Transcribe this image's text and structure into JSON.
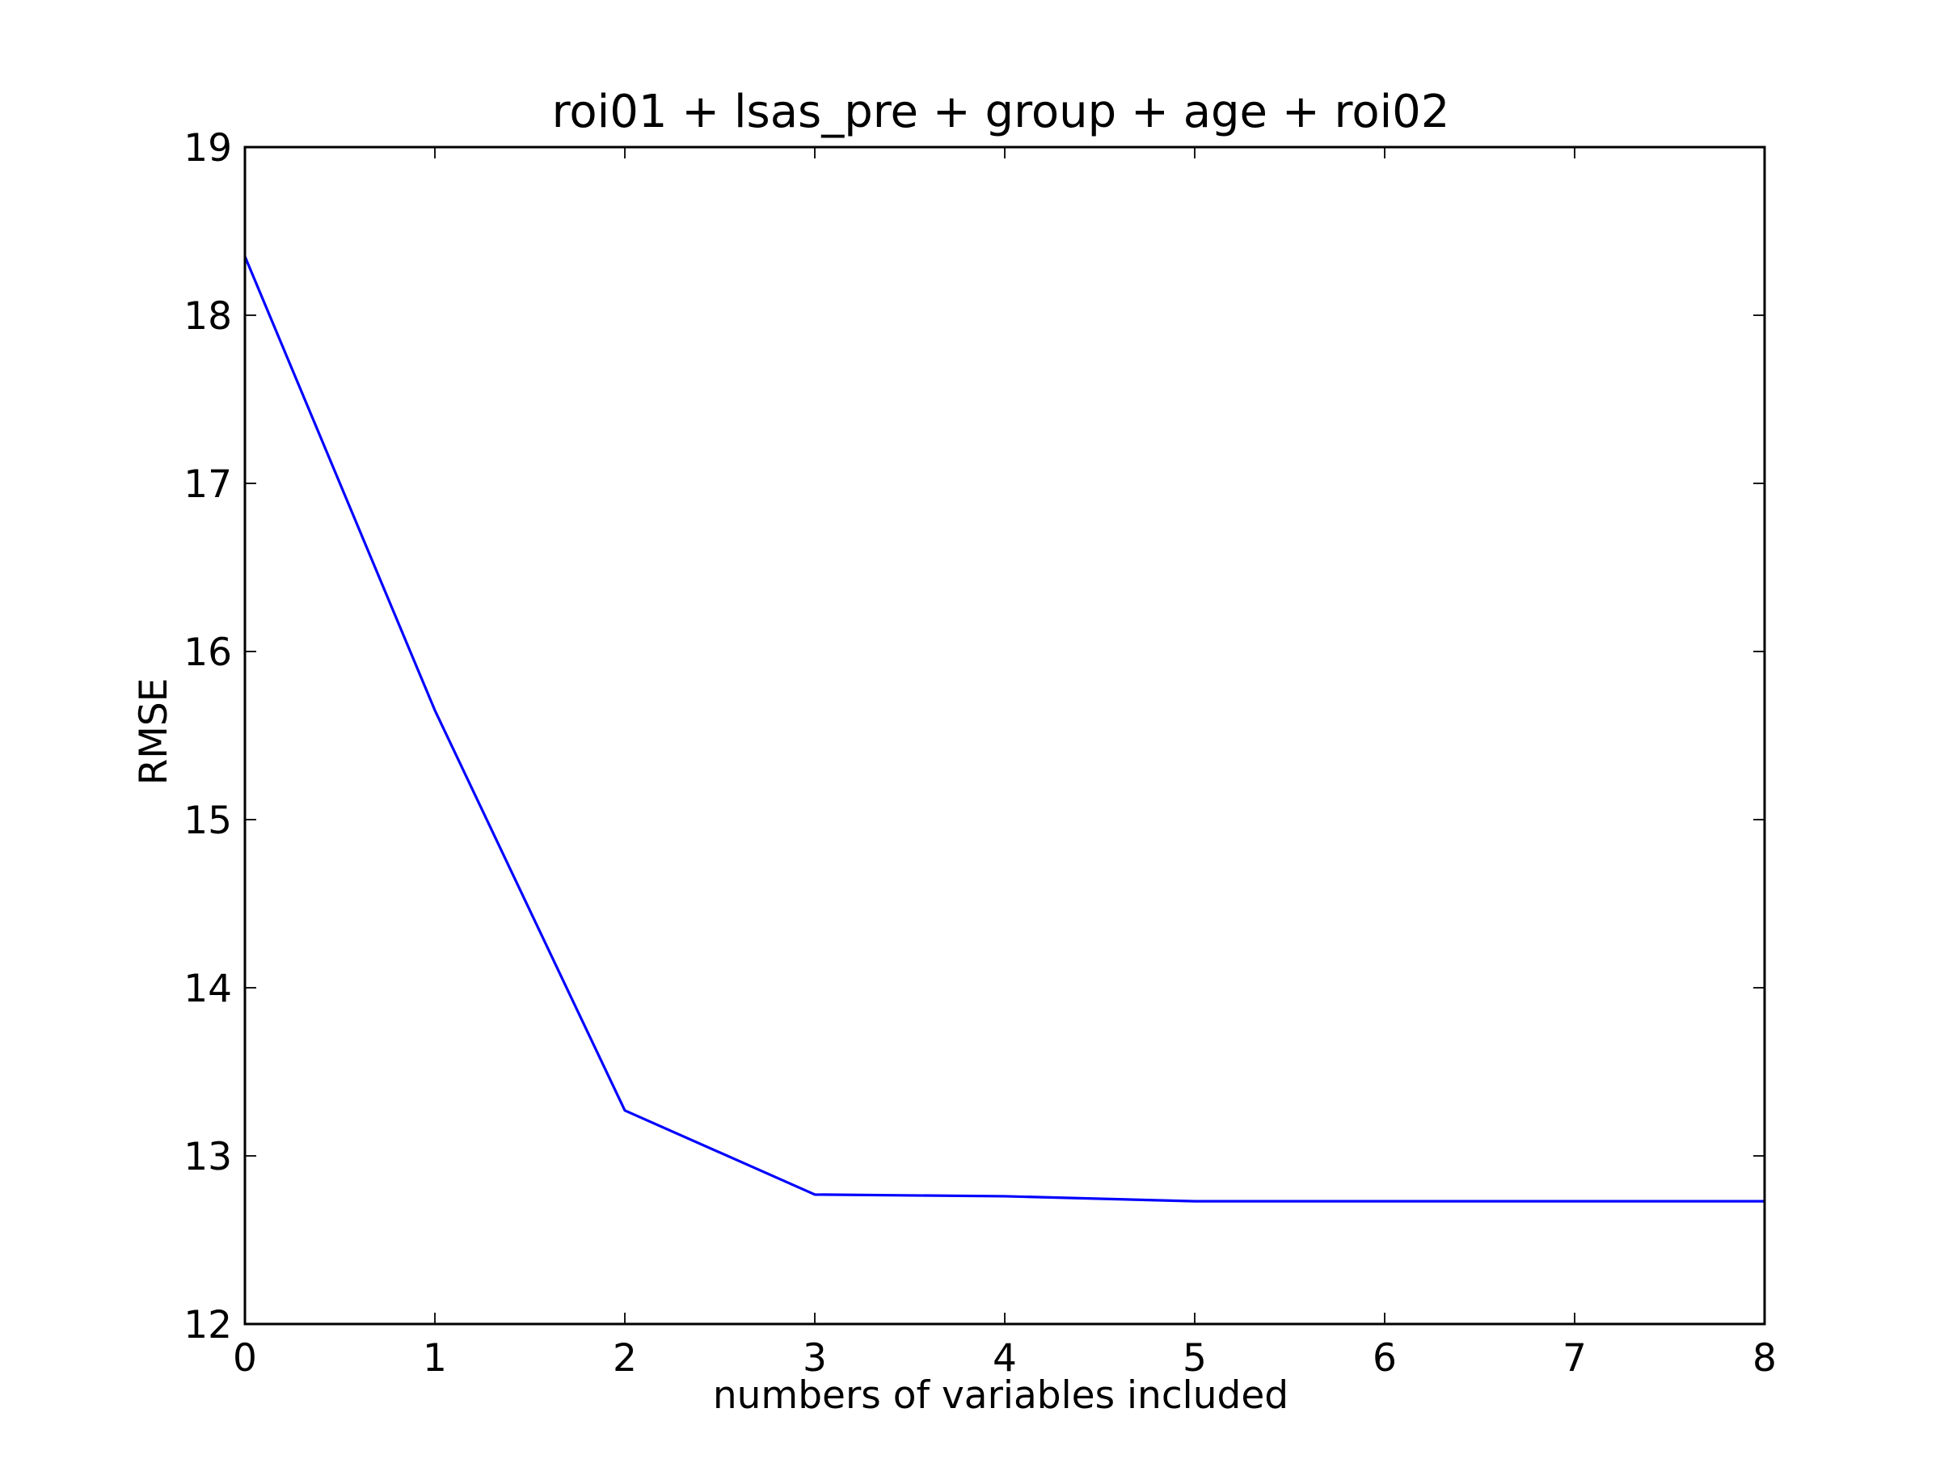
{
  "chart_data": {
    "type": "line",
    "title": "roi01 + lsas_pre + group + age + roi02",
    "xlabel": "numbers of variables included",
    "ylabel": "RMSE",
    "xlim": [
      0,
      8
    ],
    "ylim": [
      12,
      19
    ],
    "xticks": [
      "0",
      "1",
      "2",
      "3",
      "4",
      "5",
      "6",
      "7",
      "8"
    ],
    "yticks": [
      "12",
      "13",
      "14",
      "15",
      "16",
      "17",
      "18",
      "19"
    ],
    "grid": false,
    "series": [
      {
        "color": "#0000ff",
        "x": [
          0,
          1,
          2,
          3,
          4,
          5,
          6,
          7,
          8
        ],
        "y": [
          18.35,
          15.65,
          13.27,
          12.77,
          12.76,
          12.73,
          12.73,
          12.73,
          12.73
        ]
      }
    ]
  }
}
